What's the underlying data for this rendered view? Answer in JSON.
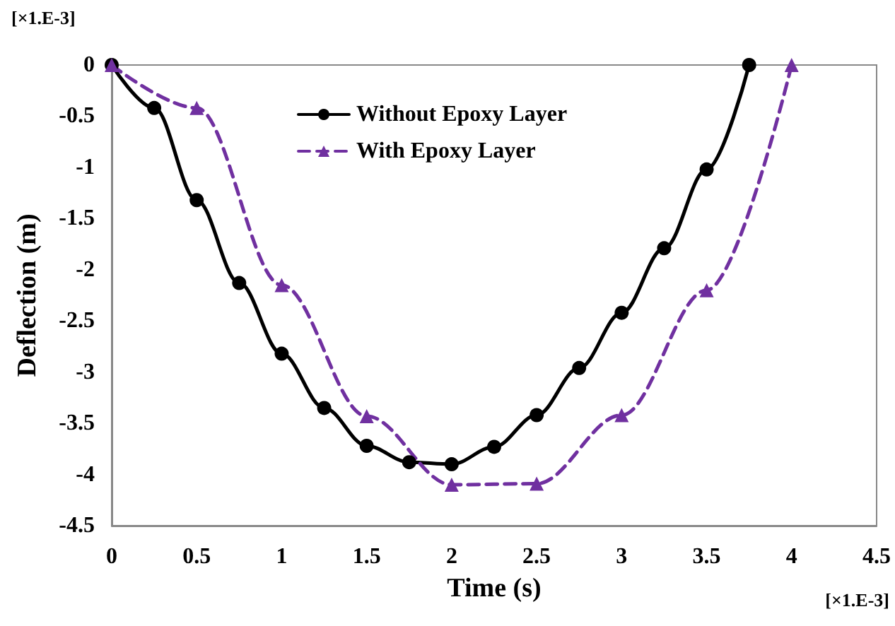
{
  "chart_data": {
    "type": "line",
    "xlabel": "Time (s)",
    "ylabel": "Deflection (m)",
    "xlim": [
      0,
      4.5
    ],
    "xticks": [
      0,
      0.5,
      1,
      1.5,
      2,
      2.5,
      3,
      3.5,
      4,
      4.5
    ],
    "ylim": [
      -4.5,
      0
    ],
    "yticks": [
      -4.5,
      -4,
      -3.5,
      -3,
      -2.5,
      -2,
      -1.5,
      -1,
      -0.5,
      0
    ],
    "grid": false,
    "legend": "top left",
    "annotations": [
      "[×1.E-3]",
      "[×1.E-3]"
    ],
    "series": [
      {
        "name": "Without Epoxy Layer",
        "color": "#000000",
        "marker": "circle",
        "line_style": "solid",
        "x": [
          0,
          0.25,
          0.5,
          0.75,
          1,
          1.25,
          1.5,
          1.75,
          2,
          2.25,
          2.5,
          2.75,
          3,
          3.25,
          3.5,
          3.75
        ],
        "values": [
          0,
          -0.42,
          -1.32,
          -2.13,
          -2.82,
          -3.35,
          -3.72,
          -3.88,
          -3.9,
          -3.73,
          -3.42,
          -2.96,
          -2.42,
          -1.79,
          -1.02,
          0
        ]
      },
      {
        "name": "With Epoxy Layer",
        "color": "#7030a0",
        "marker": "triangle",
        "line_style": "dashed",
        "x": [
          0,
          0.5,
          1,
          1.5,
          2,
          2.5,
          3,
          3.5,
          4
        ],
        "values": [
          0,
          -0.42,
          -2.15,
          -3.43,
          -4.1,
          -4.09,
          -3.42,
          -2.2,
          0
        ]
      }
    ]
  }
}
